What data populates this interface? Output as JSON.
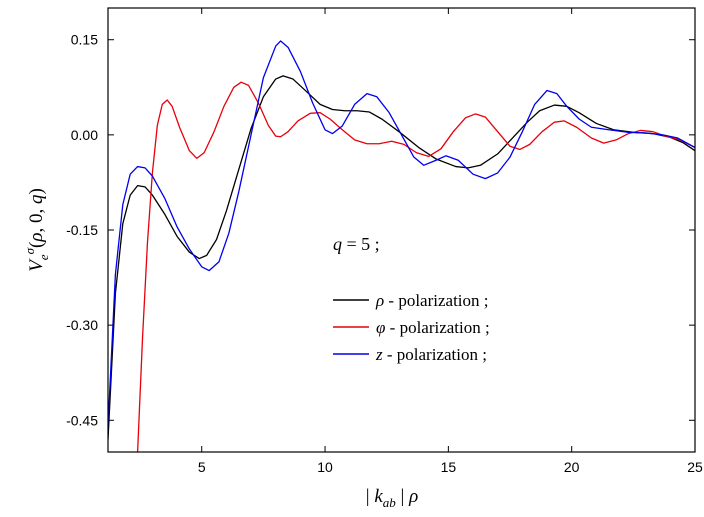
{
  "chart_data": {
    "type": "line",
    "xlabel": "| k_ab | ρ",
    "ylabel": "V_e^σ(ρ, 0, q)",
    "xlim": [
      1.2,
      25
    ],
    "ylim": [
      -0.5,
      0.2
    ],
    "xticks": [
      5,
      10,
      15,
      20,
      25
    ],
    "yticks": [
      -0.45,
      -0.3,
      -0.15,
      0.0,
      0.15
    ],
    "ytick_labels": [
      "-0.45",
      "-0.30",
      "-0.15",
      "0.00",
      "0.15"
    ],
    "annotation": "q = 5 ;",
    "grid": false,
    "legend_position": "center-right",
    "series": [
      {
        "name": "ρ - polarization ;",
        "color": "#000000",
        "points": [
          [
            1.2,
            -0.48
          ],
          [
            1.5,
            -0.25
          ],
          [
            1.8,
            -0.14
          ],
          [
            2.1,
            -0.095
          ],
          [
            2.4,
            -0.08
          ],
          [
            2.7,
            -0.082
          ],
          [
            3.0,
            -0.095
          ],
          [
            3.5,
            -0.125
          ],
          [
            4.0,
            -0.16
          ],
          [
            4.5,
            -0.185
          ],
          [
            4.9,
            -0.195
          ],
          [
            5.2,
            -0.19
          ],
          [
            5.6,
            -0.165
          ],
          [
            6.0,
            -0.12
          ],
          [
            6.5,
            -0.055
          ],
          [
            7.0,
            0.01
          ],
          [
            7.5,
            0.06
          ],
          [
            8.0,
            0.088
          ],
          [
            8.3,
            0.093
          ],
          [
            8.7,
            0.088
          ],
          [
            9.2,
            0.07
          ],
          [
            9.8,
            0.048
          ],
          [
            10.3,
            0.04
          ],
          [
            10.8,
            0.038
          ],
          [
            11.3,
            0.038
          ],
          [
            11.8,
            0.036
          ],
          [
            12.3,
            0.025
          ],
          [
            13.0,
            0.005
          ],
          [
            13.8,
            -0.02
          ],
          [
            14.5,
            -0.038
          ],
          [
            15.3,
            -0.05
          ],
          [
            15.8,
            -0.052
          ],
          [
            16.3,
            -0.048
          ],
          [
            17.0,
            -0.03
          ],
          [
            17.6,
            -0.005
          ],
          [
            18.2,
            0.02
          ],
          [
            18.7,
            0.038
          ],
          [
            19.3,
            0.047
          ],
          [
            19.8,
            0.045
          ],
          [
            20.3,
            0.035
          ],
          [
            21.0,
            0.018
          ],
          [
            21.7,
            0.008
          ],
          [
            22.5,
            0.004
          ],
          [
            23.3,
            0.002
          ],
          [
            24.0,
            -0.004
          ],
          [
            24.5,
            -0.012
          ],
          [
            25.0,
            -0.025
          ]
        ]
      },
      {
        "name": "φ - polarization ;",
        "color": "#e8000b",
        "points": [
          [
            2.4,
            -0.5
          ],
          [
            2.6,
            -0.32
          ],
          [
            2.8,
            -0.17
          ],
          [
            3.0,
            -0.06
          ],
          [
            3.2,
            0.015
          ],
          [
            3.4,
            0.048
          ],
          [
            3.6,
            0.055
          ],
          [
            3.8,
            0.045
          ],
          [
            4.1,
            0.012
          ],
          [
            4.5,
            -0.025
          ],
          [
            4.8,
            -0.037
          ],
          [
            5.1,
            -0.028
          ],
          [
            5.5,
            0.005
          ],
          [
            5.9,
            0.045
          ],
          [
            6.3,
            0.075
          ],
          [
            6.6,
            0.083
          ],
          [
            6.9,
            0.078
          ],
          [
            7.3,
            0.05
          ],
          [
            7.7,
            0.015
          ],
          [
            8.0,
            -0.002
          ],
          [
            8.2,
            -0.003
          ],
          [
            8.5,
            0.005
          ],
          [
            8.9,
            0.022
          ],
          [
            9.4,
            0.034
          ],
          [
            9.8,
            0.035
          ],
          [
            10.2,
            0.025
          ],
          [
            10.7,
            0.008
          ],
          [
            11.2,
            -0.008
          ],
          [
            11.7,
            -0.014
          ],
          [
            12.2,
            -0.014
          ],
          [
            12.7,
            -0.01
          ],
          [
            13.2,
            -0.015
          ],
          [
            13.7,
            -0.028
          ],
          [
            14.2,
            -0.034
          ],
          [
            14.7,
            -0.022
          ],
          [
            15.2,
            0.005
          ],
          [
            15.7,
            0.027
          ],
          [
            16.1,
            0.033
          ],
          [
            16.5,
            0.028
          ],
          [
            17.0,
            0.005
          ],
          [
            17.5,
            -0.018
          ],
          [
            17.9,
            -0.023
          ],
          [
            18.3,
            -0.015
          ],
          [
            18.8,
            0.005
          ],
          [
            19.3,
            0.02
          ],
          [
            19.7,
            0.022
          ],
          [
            20.2,
            0.012
          ],
          [
            20.8,
            -0.005
          ],
          [
            21.3,
            -0.013
          ],
          [
            21.8,
            -0.008
          ],
          [
            22.3,
            0.002
          ],
          [
            22.8,
            0.007
          ],
          [
            23.3,
            0.005
          ],
          [
            23.8,
            -0.002
          ],
          [
            24.4,
            -0.008
          ],
          [
            25.0,
            -0.02
          ]
        ]
      },
      {
        "name": "z - polarization ;",
        "color": "#0000ee",
        "points": [
          [
            1.2,
            -0.46
          ],
          [
            1.5,
            -0.22
          ],
          [
            1.8,
            -0.11
          ],
          [
            2.1,
            -0.062
          ],
          [
            2.4,
            -0.05
          ],
          [
            2.7,
            -0.052
          ],
          [
            3.0,
            -0.065
          ],
          [
            3.5,
            -0.1
          ],
          [
            4.0,
            -0.145
          ],
          [
            4.5,
            -0.18
          ],
          [
            5.0,
            -0.208
          ],
          [
            5.3,
            -0.214
          ],
          [
            5.7,
            -0.2
          ],
          [
            6.1,
            -0.155
          ],
          [
            6.5,
            -0.09
          ],
          [
            7.0,
            0.0
          ],
          [
            7.5,
            0.09
          ],
          [
            8.0,
            0.14
          ],
          [
            8.2,
            0.148
          ],
          [
            8.5,
            0.138
          ],
          [
            9.0,
            0.1
          ],
          [
            9.5,
            0.05
          ],
          [
            10.0,
            0.008
          ],
          [
            10.3,
            0.002
          ],
          [
            10.7,
            0.014
          ],
          [
            11.2,
            0.048
          ],
          [
            11.7,
            0.065
          ],
          [
            12.1,
            0.06
          ],
          [
            12.6,
            0.035
          ],
          [
            13.1,
            0.0
          ],
          [
            13.6,
            -0.035
          ],
          [
            14.0,
            -0.048
          ],
          [
            14.5,
            -0.04
          ],
          [
            14.9,
            -0.033
          ],
          [
            15.4,
            -0.04
          ],
          [
            16.0,
            -0.062
          ],
          [
            16.5,
            -0.069
          ],
          [
            17.0,
            -0.06
          ],
          [
            17.5,
            -0.035
          ],
          [
            18.0,
            0.005
          ],
          [
            18.5,
            0.048
          ],
          [
            19.0,
            0.07
          ],
          [
            19.4,
            0.065
          ],
          [
            19.8,
            0.045
          ],
          [
            20.3,
            0.025
          ],
          [
            20.8,
            0.012
          ],
          [
            21.5,
            0.008
          ],
          [
            22.3,
            0.004
          ],
          [
            23.0,
            0.003
          ],
          [
            23.7,
            0.0
          ],
          [
            24.3,
            -0.005
          ],
          [
            25.0,
            -0.02
          ]
        ]
      }
    ]
  }
}
